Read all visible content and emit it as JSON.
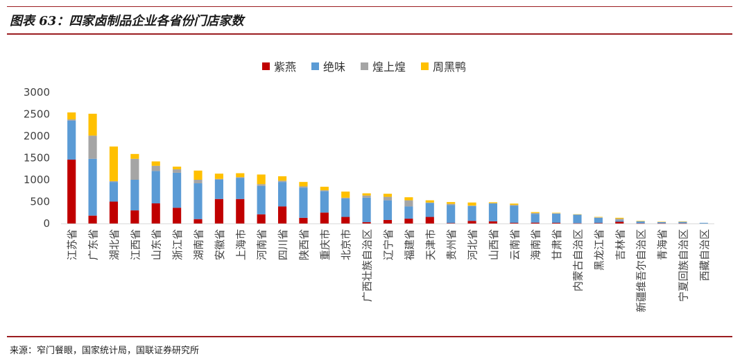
{
  "header": {
    "title": "图表 63：四家卤制品企业各省份门店家数"
  },
  "footer": {
    "source": "来源：窄门餐眼，国家统计局，国联证券研究所"
  },
  "colors": {
    "ziyan": "#c00000",
    "juewei": "#5b9bd5",
    "huangshanghuang": "#a5a5a5",
    "zhouheiya": "#ffc000",
    "axis": "#d9d9d9",
    "rule": "#9b1c20"
  },
  "chart_data": {
    "type": "bar",
    "stacked": true,
    "title": "",
    "xlabel": "",
    "ylabel": "",
    "ylim": [
      0,
      3000
    ],
    "yticks": [
      0,
      500,
      1000,
      1500,
      2000,
      2500,
      3000
    ],
    "grid": false,
    "legend_position": "top-center",
    "categories": [
      "江苏省",
      "广东省",
      "湖北省",
      "江西省",
      "山东省",
      "浙江省",
      "湖南省",
      "安徽省",
      "上海市",
      "河南省",
      "四川省",
      "陕西省",
      "重庆市",
      "北京市",
      "广西壮族自治区",
      "辽宁省",
      "福建省",
      "天津市",
      "贵州省",
      "河北省",
      "山西省",
      "云南省",
      "海南省",
      "甘肃省",
      "内蒙古自治区",
      "黑龙江省",
      "吉林省",
      "新疆维吾尔自治区",
      "青海省",
      "宁夏回族自治区",
      "西藏自治区"
    ],
    "series": [
      {
        "name": "紫燕",
        "color": "#c00000",
        "values": [
          1460,
          180,
          500,
          300,
          460,
          360,
          100,
          560,
          560,
          210,
          390,
          130,
          250,
          150,
          30,
          80,
          110,
          150,
          10,
          60,
          50,
          15,
          20,
          15,
          5,
          10,
          40,
          5,
          5,
          5,
          0
        ]
      },
      {
        "name": "绝味",
        "color": "#5b9bd5",
        "values": [
          890,
          1300,
          450,
          700,
          740,
          800,
          820,
          440,
          480,
          650,
          560,
          690,
          490,
          420,
          560,
          450,
          280,
          320,
          410,
          340,
          410,
          390,
          200,
          210,
          200,
          120,
          30,
          45,
          30,
          35,
          15
        ]
      },
      {
        "name": "煌上煌",
        "color": "#a5a5a5",
        "values": [
          30,
          530,
          20,
          480,
          120,
          80,
          80,
          20,
          20,
          40,
          30,
          30,
          20,
          20,
          50,
          80,
          140,
          10,
          30,
          10,
          5,
          20,
          20,
          10,
          0,
          10,
          40,
          0,
          0,
          0,
          0
        ]
      },
      {
        "name": "周黑鸭",
        "color": "#ffc000",
        "values": [
          160,
          500,
          790,
          110,
          100,
          60,
          210,
          120,
          90,
          220,
          100,
          100,
          80,
          140,
          50,
          70,
          70,
          50,
          40,
          70,
          20,
          30,
          20,
          10,
          5,
          10,
          20,
          10,
          5,
          5,
          0
        ]
      }
    ]
  }
}
